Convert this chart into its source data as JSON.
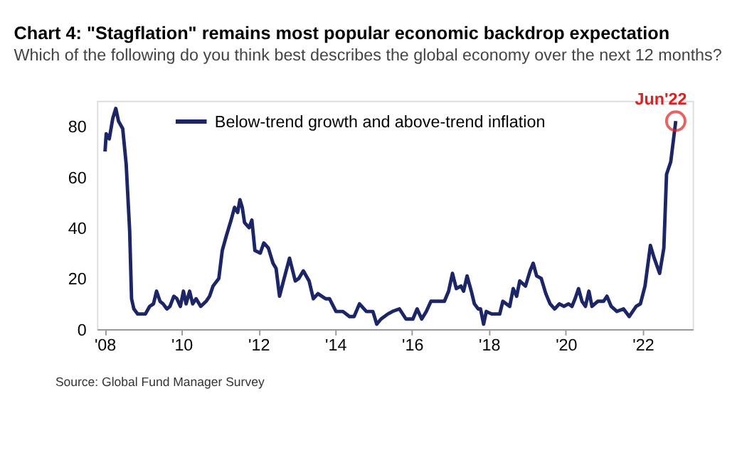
{
  "chart_data": {
    "type": "line",
    "title": "Chart 4: \"Stagflation\" remains most popular economic backdrop expectation",
    "subtitle": "Which of the following do you think best describes the global economy over the next 12 months?",
    "x": [
      2008.01,
      2008.04,
      2008.12,
      2008.21,
      2008.29,
      2008.36,
      2008.47,
      2008.56,
      2008.65,
      2008.7,
      2008.76,
      2008.86,
      2008.98,
      2009.06,
      2009.17,
      2009.27,
      2009.35,
      2009.44,
      2009.52,
      2009.62,
      2009.7,
      2009.8,
      2009.88,
      2009.97,
      2010.05,
      2010.12,
      2010.21,
      2010.29,
      2010.38,
      2010.5,
      2010.64,
      2010.73,
      2010.82,
      2010.97,
      2011.06,
      2011.17,
      2011.29,
      2011.38,
      2011.46,
      2011.52,
      2011.58,
      2011.64,
      2011.76,
      2011.83,
      2011.91,
      2012.05,
      2012.14,
      2012.26,
      2012.38,
      2012.46,
      2012.55,
      2012.67,
      2012.81,
      2012.96,
      2013.05,
      2013.17,
      2013.32,
      2013.43,
      2013.55,
      2013.75,
      2013.85,
      2014.02,
      2014.2,
      2014.37,
      2014.49,
      2014.63,
      2014.81,
      2014.98,
      2015.08,
      2015.19,
      2015.37,
      2015.49,
      2015.67,
      2015.84,
      2016.02,
      2016.13,
      2016.25,
      2016.37,
      2016.49,
      2016.66,
      2016.84,
      2016.95,
      2017.05,
      2017.15,
      2017.27,
      2017.34,
      2017.43,
      2017.54,
      2017.62,
      2017.72,
      2017.78,
      2017.86,
      2017.93,
      2018.07,
      2018.28,
      2018.36,
      2018.54,
      2018.63,
      2018.72,
      2018.8,
      2018.95,
      2019.07,
      2019.15,
      2019.24,
      2019.36,
      2019.48,
      2019.59,
      2019.71,
      2019.83,
      2019.95,
      2020.07,
      2020.16,
      2020.24,
      2020.33,
      2020.42,
      2020.51,
      2020.6,
      2020.68,
      2020.83,
      2020.98,
      2021.07,
      2021.18,
      2021.33,
      2021.5,
      2021.65,
      2021.83,
      2021.94,
      2022.06,
      2022.2,
      2022.3,
      2022.44,
      2022.55,
      2022.62,
      2022.73,
      2022.86
    ],
    "series": [
      {
        "name": "Below-trend growth and above-trend inflation",
        "color": "#1c2566",
        "values": [
          70,
          77,
          75,
          83,
          87,
          82,
          79,
          65,
          39,
          12,
          8,
          6,
          6,
          6,
          9,
          10,
          15,
          11,
          10,
          8,
          9,
          13,
          12,
          9,
          15,
          10,
          15,
          10,
          12,
          9,
          11,
          13,
          17,
          20,
          31,
          37,
          43,
          48,
          46,
          51,
          48,
          42,
          40,
          43,
          31,
          30,
          34,
          32,
          26,
          24,
          13,
          20,
          28,
          19,
          20,
          23,
          19,
          12,
          14,
          12,
          12,
          7,
          7,
          5,
          5,
          10,
          7,
          7,
          2,
          4,
          6,
          7,
          8,
          4,
          4,
          8,
          4,
          7,
          11,
          11,
          11,
          15,
          22,
          16,
          17,
          15,
          21,
          15,
          10,
          8,
          8,
          2,
          7,
          6,
          6,
          11,
          9,
          16,
          13,
          19,
          17,
          23,
          26,
          21,
          20,
          14,
          10,
          8,
          10,
          9,
          10,
          9,
          12,
          16,
          11,
          9,
          15,
          9,
          11,
          11,
          13,
          9,
          7,
          8,
          5,
          9,
          10,
          17,
          33,
          28,
          22,
          32,
          61,
          66,
          82
        ]
      }
    ],
    "xlim": [
      2007.8,
      2023.3
    ],
    "xticks": [
      {
        "value": 2008,
        "label": "'08"
      },
      {
        "value": 2010,
        "label": "'10"
      },
      {
        "value": 2012,
        "label": "'12"
      },
      {
        "value": 2014,
        "label": "'14"
      },
      {
        "value": 2016,
        "label": "'16"
      },
      {
        "value": 2018,
        "label": "'18"
      },
      {
        "value": 2020,
        "label": "'20"
      },
      {
        "value": 2022,
        "label": "'22"
      }
    ],
    "ylim": [
      0,
      90
    ],
    "yticks": [
      0,
      20,
      40,
      60,
      80
    ],
    "grid": false,
    "legend": "top left",
    "line_style": "solid",
    "annotations": [
      {
        "text": "Jun'22",
        "x": 2022.86,
        "y": 82
      },
      "Source: Global Fund Manager Survey"
    ]
  }
}
